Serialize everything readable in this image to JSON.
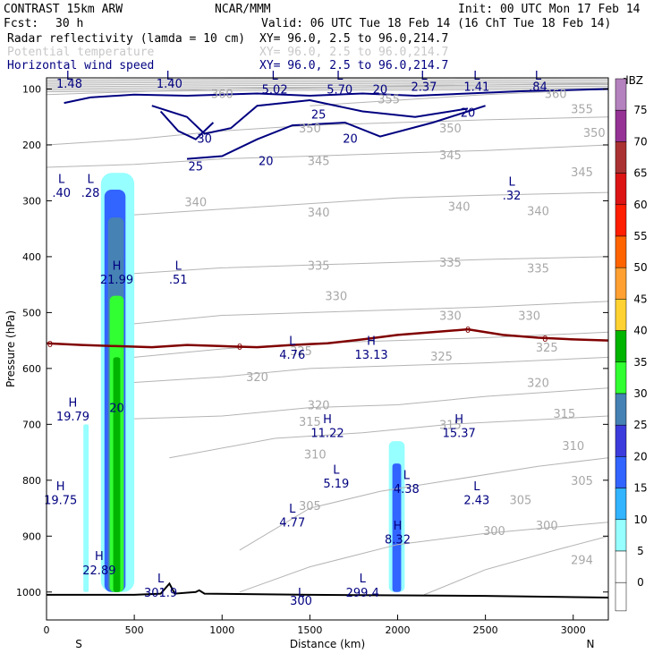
{
  "header": {
    "model": "CONTRAST 15km ARW",
    "org": "NCAR/MMM",
    "init": "Init: 00 UTC Mon 17 Feb 14",
    "fcst_label": "Fcst:",
    "fcst_value": "30 h",
    "valid": "Valid: 06 UTC Tue 18 Feb 14 (16 ChT Tue 18 Feb 14)",
    "fields": [
      {
        "name": "Radar reflectivity (lamda = 10 cm)",
        "xy": "XY=  96.0,  2.5 to  96.0,214.7",
        "color": "#000000"
      },
      {
        "name": "Potential temperature",
        "xy": "XY=  96.0,  2.5 to  96.0,214.7",
        "color": "#c8c8c8"
      },
      {
        "name": "Horizontal wind speed",
        "xy": "XY=  96.0,  2.5 to  96.0,214.7",
        "color": "#000080"
      }
    ]
  },
  "chart_data": {
    "type": "cross-section contour",
    "xlabel": "Distance (km)",
    "ylabel": "Pressure (hPa)",
    "xlim": [
      0,
      3200
    ],
    "ylim": [
      1050,
      80
    ],
    "x_ticks": [
      0,
      500,
      1000,
      1500,
      2000,
      2500,
      3000
    ],
    "y_ticks": [
      100,
      200,
      300,
      400,
      500,
      600,
      700,
      800,
      900,
      1000
    ],
    "x_end_labels": [
      "S",
      "N"
    ],
    "colorbar": {
      "unit": "dBZ",
      "levels": [
        "0",
        "5",
        "10",
        "15",
        "20",
        "25",
        "30",
        "35",
        "40",
        "45",
        "50",
        "55",
        "60",
        "65",
        "70",
        "75"
      ],
      "colors": [
        "#ffffff",
        "#96ffff",
        "#32b4ff",
        "#3264ff",
        "#3c3cdc",
        "#4682b4",
        "#32ff32",
        "#00b400",
        "#ffd232",
        "#ffa032",
        "#ff6400",
        "#ff1e00",
        "#dc1414",
        "#aa3232",
        "#963296",
        "#b482be"
      ]
    },
    "theta_contours": [
      {
        "level": 294,
        "points": [
          [
            2150,
            1005
          ],
          [
            2500,
            960
          ],
          [
            2900,
            925
          ],
          [
            3200,
            900
          ]
        ]
      },
      {
        "level": 300,
        "points": [
          [
            1100,
            1000
          ],
          [
            1500,
            955
          ],
          [
            2000,
            915
          ],
          [
            2500,
            895
          ],
          [
            3200,
            875
          ]
        ]
      },
      {
        "level": 305,
        "points": [
          [
            1100,
            925
          ],
          [
            1500,
            850
          ],
          [
            1900,
            820
          ],
          [
            2300,
            800
          ],
          [
            2800,
            775
          ],
          [
            3200,
            760
          ]
        ]
      },
      {
        "level": 310,
        "points": [
          [
            700,
            760
          ],
          [
            1300,
            725
          ],
          [
            1800,
            715
          ],
          [
            2300,
            700
          ],
          [
            3200,
            685
          ]
        ]
      },
      {
        "level": 315,
        "points": [
          [
            500,
            690
          ],
          [
            1000,
            685
          ],
          [
            1500,
            670
          ],
          [
            2000,
            665
          ],
          [
            2500,
            650
          ],
          [
            3200,
            635
          ]
        ]
      },
      {
        "level": 320,
        "points": [
          [
            500,
            625
          ],
          [
            1000,
            615
          ],
          [
            1500,
            600
          ],
          [
            2000,
            595
          ],
          [
            2500,
            590
          ],
          [
            3200,
            580
          ]
        ]
      },
      {
        "level": 325,
        "points": [
          [
            500,
            580
          ],
          [
            1000,
            565
          ],
          [
            1500,
            555
          ],
          [
            2000,
            550
          ],
          [
            2500,
            545
          ],
          [
            3200,
            535
          ]
        ]
      },
      {
        "level": 330,
        "points": [
          [
            500,
            520
          ],
          [
            1000,
            505
          ],
          [
            1500,
            500
          ],
          [
            2000,
            495
          ],
          [
            2500,
            490
          ],
          [
            3200,
            480
          ]
        ]
      },
      {
        "level": 335,
        "points": [
          [
            500,
            430
          ],
          [
            1000,
            420
          ],
          [
            1500,
            415
          ],
          [
            2000,
            410
          ],
          [
            2500,
            405
          ],
          [
            3200,
            400
          ]
        ]
      },
      {
        "level": 340,
        "points": [
          [
            500,
            325
          ],
          [
            1000,
            315
          ],
          [
            1500,
            305
          ],
          [
            2000,
            295
          ],
          [
            2500,
            290
          ],
          [
            3200,
            285
          ]
        ]
      },
      {
        "level": 345,
        "points": [
          [
            0,
            240
          ],
          [
            500,
            235
          ],
          [
            1000,
            225
          ],
          [
            1500,
            220
          ],
          [
            2000,
            215
          ],
          [
            2500,
            210
          ],
          [
            3200,
            200
          ]
        ]
      },
      {
        "level": 350,
        "points": [
          [
            0,
            200
          ],
          [
            500,
            190
          ],
          [
            1000,
            175
          ],
          [
            1500,
            165
          ],
          [
            2000,
            160
          ],
          [
            2500,
            155
          ],
          [
            3200,
            150
          ]
        ]
      },
      {
        "level": 355,
        "points": [
          [
            1500,
            130
          ],
          [
            2000,
            120
          ],
          [
            2500,
            110
          ],
          [
            3200,
            100
          ]
        ]
      },
      {
        "level": 360,
        "points": [
          [
            0,
            110
          ],
          [
            1000,
            100
          ],
          [
            2000,
            95
          ],
          [
            3200,
            90
          ]
        ]
      }
    ],
    "wind_contours": [
      {
        "level": 20,
        "points": [
          [
            100,
            125
          ],
          [
            250,
            115
          ],
          [
            500,
            110
          ],
          [
            800,
            112
          ],
          [
            1000,
            110
          ],
          [
            1200,
            108
          ],
          [
            1500,
            112
          ],
          [
            1800,
            108
          ],
          [
            2100,
            112
          ],
          [
            2400,
            108
          ],
          [
            2700,
            104
          ],
          [
            3200,
            100
          ]
        ]
      },
      {
        "level": 25,
        "points": [
          [
            600,
            130
          ],
          [
            800,
            150
          ],
          [
            900,
            180
          ],
          [
            1050,
            170
          ],
          [
            1200,
            130
          ],
          [
            1500,
            120
          ],
          [
            1800,
            140
          ],
          [
            2100,
            150
          ],
          [
            2400,
            135
          ]
        ]
      },
      {
        "level": 30,
        "points": [
          [
            650,
            140
          ],
          [
            750,
            175
          ],
          [
            850,
            190
          ],
          [
            950,
            160
          ]
        ]
      },
      {
        "level": 20,
        "points": [
          [
            800,
            225
          ],
          [
            1000,
            220
          ],
          [
            1200,
            190
          ],
          [
            1400,
            165
          ],
          [
            1700,
            160
          ],
          [
            1900,
            185
          ],
          [
            2200,
            160
          ],
          [
            2400,
            140
          ],
          [
            2500,
            130
          ]
        ]
      }
    ],
    "freezing_level": {
      "label": "0",
      "points": [
        [
          0,
          555
        ],
        [
          200,
          558
        ],
        [
          400,
          560
        ],
        [
          600,
          562
        ],
        [
          800,
          558
        ],
        [
          1000,
          560
        ],
        [
          1200,
          562
        ],
        [
          1400,
          558
        ],
        [
          1600,
          555
        ],
        [
          1800,
          548
        ],
        [
          2000,
          540
        ],
        [
          2200,
          535
        ],
        [
          2400,
          530
        ],
        [
          2600,
          540
        ],
        [
          2800,
          545
        ],
        [
          3000,
          548
        ],
        [
          3200,
          550
        ]
      ]
    },
    "reflectivity_cells": [
      {
        "x_range": [
          210,
          240
        ],
        "p_range": [
          700,
          1000
        ],
        "dbz": 5
      },
      {
        "x_range": [
          310,
          500
        ],
        "p_range": [
          250,
          1000
        ],
        "dbz": 5
      },
      {
        "x_range": [
          330,
          450
        ],
        "p_range": [
          280,
          1000
        ],
        "dbz": 15
      },
      {
        "x_range": [
          350,
          440
        ],
        "p_range": [
          330,
          1000
        ],
        "dbz": 25
      },
      {
        "x_range": [
          360,
          440
        ],
        "p_range": [
          470,
          1000
        ],
        "dbz": 30
      },
      {
        "x_range": [
          380,
          420
        ],
        "p_range": [
          580,
          1000
        ],
        "dbz": 35
      },
      {
        "x_range": [
          1950,
          2040
        ],
        "p_range": [
          730,
          1000
        ],
        "dbz": 5
      },
      {
        "x_range": [
          1970,
          2020
        ],
        "p_range": [
          770,
          1000
        ],
        "dbz": 15
      }
    ],
    "annotations": [
      {
        "text": "L",
        "x": 85,
        "p": 260
      },
      {
        "text": ".40",
        "x": 85,
        "p": 285
      },
      {
        "text": "L",
        "x": 250,
        "p": 260
      },
      {
        "text": ".28",
        "x": 250,
        "p": 285
      },
      {
        "text": "H",
        "x": 400,
        "p": 415
      },
      {
        "text": "21.99",
        "x": 400,
        "p": 440
      },
      {
        "text": "L",
        "x": 750,
        "p": 415
      },
      {
        "text": ".51",
        "x": 750,
        "p": 440
      },
      {
        "text": "L",
        "x": 1400,
        "p": 550
      },
      {
        "text": "4.76",
        "x": 1400,
        "p": 575
      },
      {
        "text": "H",
        "x": 1850,
        "p": 550
      },
      {
        "text": "13.13",
        "x": 1850,
        "p": 575
      },
      {
        "text": "H",
        "x": 150,
        "p": 660
      },
      {
        "text": "19.79",
        "x": 150,
        "p": 685
      },
      {
        "text": "H",
        "x": 1600,
        "p": 690
      },
      {
        "text": "11.22",
        "x": 1600,
        "p": 715
      },
      {
        "text": "H",
        "x": 2350,
        "p": 690
      },
      {
        "text": "15.37",
        "x": 2350,
        "p": 715
      },
      {
        "text": "L",
        "x": 1650,
        "p": 780
      },
      {
        "text": "5.19",
        "x": 1650,
        "p": 805
      },
      {
        "text": "L",
        "x": 2050,
        "p": 790
      },
      {
        "text": "4.38",
        "x": 2050,
        "p": 815
      },
      {
        "text": "H",
        "x": 80,
        "p": 810
      },
      {
        "text": "19.75",
        "x": 80,
        "p": 835
      },
      {
        "text": "L",
        "x": 2450,
        "p": 810
      },
      {
        "text": "2.43",
        "x": 2450,
        "p": 835
      },
      {
        "text": "L",
        "x": 1400,
        "p": 850
      },
      {
        "text": "4.77",
        "x": 1400,
        "p": 875
      },
      {
        "text": "H",
        "x": 2000,
        "p": 880
      },
      {
        "text": "8.32",
        "x": 2000,
        "p": 905
      },
      {
        "text": "H",
        "x": 300,
        "p": 935
      },
      {
        "text": "22.89",
        "x": 300,
        "p": 960
      },
      {
        "text": "L",
        "x": 650,
        "p": 975
      },
      {
        "text": "301.9",
        "x": 650,
        "p": 1000
      },
      {
        "text": "L",
        "x": 1800,
        "p": 975
      },
      {
        "text": "299.4",
        "x": 1800,
        "p": 1000
      },
      {
        "text": "L",
        "x": 1450,
        "p": 1000
      },
      {
        "text": "300",
        "x": 1450,
        "p": 1015
      },
      {
        "text": "L",
        "x": 130,
        "p": 75
      },
      {
        "text": "1.48",
        "x": 130,
        "p": 90
      },
      {
        "text": "L",
        "x": 700,
        "p": 75
      },
      {
        "text": "1.40",
        "x": 700,
        "p": 90
      },
      {
        "text": "L",
        "x": 1300,
        "p": 75
      },
      {
        "text": "5.02",
        "x": 1300,
        "p": 100
      },
      {
        "text": "L",
        "x": 1670,
        "p": 75
      },
      {
        "text": "5.70",
        "x": 1670,
        "p": 100
      },
      {
        "text": "L",
        "x": 2150,
        "p": 75
      },
      {
        "text": "2.37",
        "x": 2150,
        "p": 95
      },
      {
        "text": "L",
        "x": 2450,
        "p": 75
      },
      {
        "text": "1.41",
        "x": 2450,
        "p": 95
      },
      {
        "text": "L",
        "x": 2800,
        "p": 75
      },
      {
        "text": ".84",
        "x": 2800,
        "p": 95
      },
      {
        "text": "L",
        "x": 2650,
        "p": 265
      },
      {
        "text": ".32",
        "x": 2650,
        "p": 290
      }
    ],
    "theta_labels": [
      {
        "text": "360",
        "x": 1000,
        "p": 108
      },
      {
        "text": "360",
        "x": 2900,
        "p": 108
      },
      {
        "text": "355",
        "x": 1950,
        "p": 118
      },
      {
        "text": "355",
        "x": 3050,
        "p": 135
      },
      {
        "text": "350",
        "x": 1500,
        "p": 170
      },
      {
        "text": "350",
        "x": 2300,
        "p": 170
      },
      {
        "text": "350",
        "x": 3120,
        "p": 178
      },
      {
        "text": "345",
        "x": 1550,
        "p": 228
      },
      {
        "text": "345",
        "x": 2300,
        "p": 218
      },
      {
        "text": "345",
        "x": 3050,
        "p": 248
      },
      {
        "text": "340",
        "x": 850,
        "p": 302
      },
      {
        "text": "340",
        "x": 1550,
        "p": 320
      },
      {
        "text": "340",
        "x": 2350,
        "p": 310
      },
      {
        "text": "340",
        "x": 2800,
        "p": 318
      },
      {
        "text": "335",
        "x": 1550,
        "p": 415
      },
      {
        "text": "335",
        "x": 2300,
        "p": 410
      },
      {
        "text": "335",
        "x": 2800,
        "p": 420
      },
      {
        "text": "330",
        "x": 1650,
        "p": 470
      },
      {
        "text": "330",
        "x": 2300,
        "p": 505
      },
      {
        "text": "330",
        "x": 2750,
        "p": 505
      },
      {
        "text": "325",
        "x": 1450,
        "p": 568
      },
      {
        "text": "325",
        "x": 2250,
        "p": 578
      },
      {
        "text": "325",
        "x": 2850,
        "p": 562
      },
      {
        "text": "320",
        "x": 1200,
        "p": 615
      },
      {
        "text": "320",
        "x": 2800,
        "p": 625
      },
      {
        "text": "320",
        "x": 1550,
        "p": 665
      },
      {
        "text": "315",
        "x": 1500,
        "p": 695
      },
      {
        "text": "315",
        "x": 2300,
        "p": 700
      },
      {
        "text": "315",
        "x": 2950,
        "p": 680
      },
      {
        "text": "310",
        "x": 1530,
        "p": 753
      },
      {
        "text": "310",
        "x": 3000,
        "p": 738
      },
      {
        "text": "305",
        "x": 1500,
        "p": 845
      },
      {
        "text": "305",
        "x": 2700,
        "p": 835
      },
      {
        "text": "305",
        "x": 3050,
        "p": 800
      },
      {
        "text": "300",
        "x": 2550,
        "p": 890
      },
      {
        "text": "300",
        "x": 2850,
        "p": 880
      },
      {
        "text": "294",
        "x": 3050,
        "p": 942
      }
    ],
    "wind_labels": [
      {
        "text": "20",
        "x": 1900,
        "p": 100
      },
      {
        "text": "20",
        "x": 2400,
        "p": 142
      },
      {
        "text": "20",
        "x": 1730,
        "p": 188
      },
      {
        "text": "20",
        "x": 1250,
        "p": 228
      },
      {
        "text": "25",
        "x": 1550,
        "p": 145
      },
      {
        "text": "25",
        "x": 850,
        "p": 238
      },
      {
        "text": "30",
        "x": 900,
        "p": 188
      },
      {
        "text": "20",
        "x": 400,
        "p": 670
      }
    ]
  }
}
